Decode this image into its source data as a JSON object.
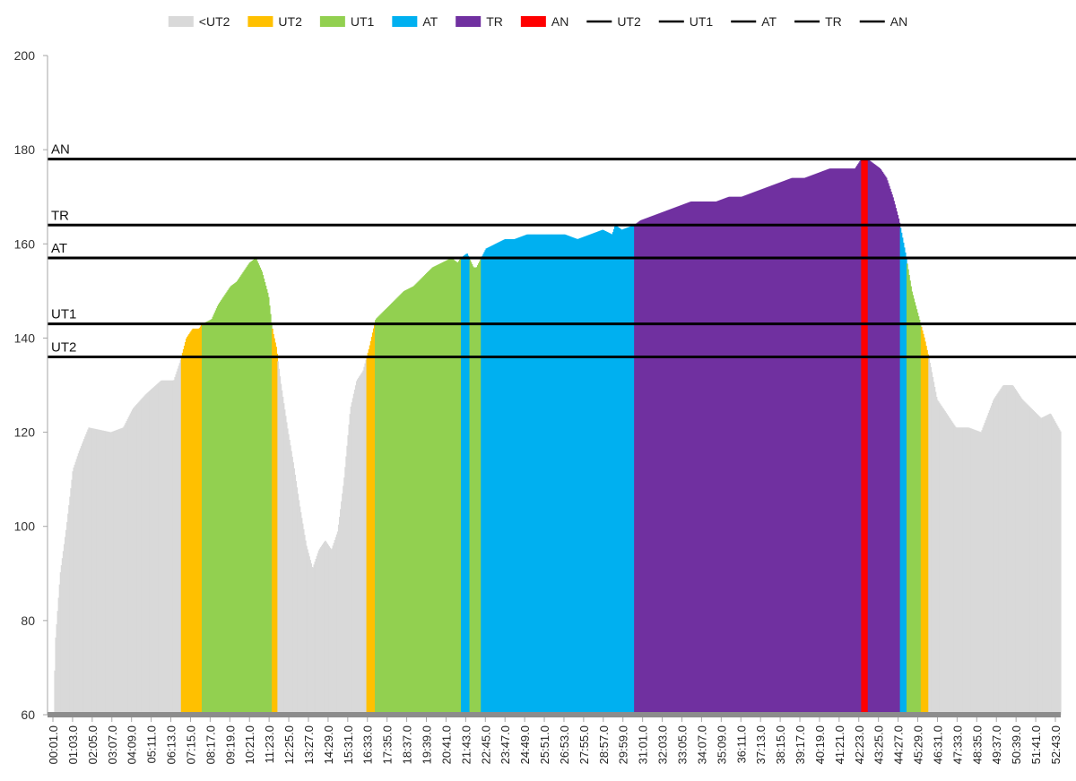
{
  "chart_data": {
    "type": "area",
    "y_axis": {
      "min": 60,
      "max": 200,
      "step": 20,
      "ticks": [
        60,
        80,
        100,
        120,
        140,
        160,
        180,
        200
      ]
    },
    "x_axis": {
      "tick_labels": [
        "00:01.0",
        "01:03.0",
        "02:05.0",
        "03:07.0",
        "04:09.0",
        "05:11.0",
        "06:13.0",
        "07:15.0",
        "08:17.0",
        "09:19.0",
        "10:21.0",
        "11:23.0",
        "12:25.0",
        "13:27.0",
        "14:29.0",
        "15:31.0",
        "16:33.0",
        "17:35.0",
        "18:37.0",
        "19:39.0",
        "20:41.0",
        "21:43.0",
        "22:45.0",
        "23:47.0",
        "24:49.0",
        "25:51.0",
        "26:53.0",
        "27:55.0",
        "28:57.0",
        "29:59.0",
        "31:01.0",
        "32:03.0",
        "33:05.0",
        "34:07.0",
        "35:09.0",
        "36:11.0",
        "37:13.0",
        "38:15.0",
        "39:17.0",
        "40:19.0",
        "41:21.0",
        "42:23.0",
        "43:25.0",
        "44:27.0",
        "45:29.0",
        "46:31.0",
        "47:33.0",
        "48:35.0",
        "49:37.0",
        "50:39.0",
        "51:41.0",
        "52:43.0"
      ],
      "start_seconds": 1,
      "end_seconds": 3213
    },
    "zones": [
      {
        "name": "<UT2",
        "color": "#d9d9d9"
      },
      {
        "name": "UT2",
        "color": "#ffc000"
      },
      {
        "name": "UT1",
        "color": "#92d050"
      },
      {
        "name": "AT",
        "color": "#00b0f0"
      },
      {
        "name": "TR",
        "color": "#7030a0"
      },
      {
        "name": "AN",
        "color": "#ff0000"
      }
    ],
    "reference_lines": [
      {
        "name": "UT2",
        "value": 136
      },
      {
        "name": "UT1",
        "value": 143
      },
      {
        "name": "AT",
        "value": 157
      },
      {
        "name": "TR",
        "value": 164
      },
      {
        "name": "AN",
        "value": 178
      }
    ],
    "series_points": [
      [
        0,
        60
      ],
      [
        20,
        60
      ],
      [
        24,
        75
      ],
      [
        40,
        90
      ],
      [
        60,
        100
      ],
      [
        80,
        112
      ],
      [
        100,
        116
      ],
      [
        130,
        121
      ],
      [
        200,
        120
      ],
      [
        240,
        121
      ],
      [
        270,
        125
      ],
      [
        310,
        128
      ],
      [
        360,
        131
      ],
      [
        400,
        131
      ],
      [
        420,
        135
      ],
      [
        440,
        140
      ],
      [
        460,
        142
      ],
      [
        480,
        142
      ],
      [
        490,
        143
      ],
      [
        520,
        144
      ],
      [
        540,
        147
      ],
      [
        560,
        149
      ],
      [
        580,
        151
      ],
      [
        600,
        152
      ],
      [
        620,
        154
      ],
      [
        640,
        156
      ],
      [
        660,
        157
      ],
      [
        680,
        154
      ],
      [
        700,
        149
      ],
      [
        710,
        143
      ],
      [
        715,
        141
      ],
      [
        725,
        138
      ],
      [
        740,
        130
      ],
      [
        760,
        121
      ],
      [
        780,
        113
      ],
      [
        800,
        104
      ],
      [
        820,
        96
      ],
      [
        840,
        91
      ],
      [
        860,
        95
      ],
      [
        880,
        97
      ],
      [
        900,
        95
      ],
      [
        920,
        99
      ],
      [
        940,
        110
      ],
      [
        960,
        125
      ],
      [
        980,
        131
      ],
      [
        1000,
        133
      ],
      [
        1020,
        138
      ],
      [
        1040,
        144
      ],
      [
        1070,
        146
      ],
      [
        1100,
        148
      ],
      [
        1130,
        150
      ],
      [
        1160,
        151
      ],
      [
        1190,
        153
      ],
      [
        1220,
        155
      ],
      [
        1250,
        156
      ],
      [
        1280,
        157
      ],
      [
        1300,
        156
      ],
      [
        1310,
        157
      ],
      [
        1330,
        158
      ],
      [
        1350,
        155
      ],
      [
        1360,
        155
      ],
      [
        1390,
        159
      ],
      [
        1420,
        160
      ],
      [
        1450,
        161
      ],
      [
        1480,
        161
      ],
      [
        1520,
        162
      ],
      [
        1560,
        162
      ],
      [
        1600,
        162
      ],
      [
        1640,
        162
      ],
      [
        1680,
        161
      ],
      [
        1720,
        162
      ],
      [
        1760,
        163
      ],
      [
        1790,
        162
      ],
      [
        1800,
        164
      ],
      [
        1820,
        163
      ],
      [
        1860,
        164
      ],
      [
        1880,
        165
      ],
      [
        1920,
        166
      ],
      [
        1960,
        167
      ],
      [
        2000,
        168
      ],
      [
        2040,
        169
      ],
      [
        2080,
        169
      ],
      [
        2120,
        169
      ],
      [
        2160,
        170
      ],
      [
        2200,
        170
      ],
      [
        2240,
        171
      ],
      [
        2280,
        172
      ],
      [
        2320,
        173
      ],
      [
        2360,
        174
      ],
      [
        2400,
        174
      ],
      [
        2440,
        175
      ],
      [
        2480,
        176
      ],
      [
        2520,
        176
      ],
      [
        2560,
        176
      ],
      [
        2580,
        178
      ],
      [
        2600,
        178
      ],
      [
        2620,
        177
      ],
      [
        2640,
        176
      ],
      [
        2660,
        174
      ],
      [
        2680,
        170
      ],
      [
        2700,
        165
      ],
      [
        2720,
        158
      ],
      [
        2740,
        150
      ],
      [
        2760,
        145
      ],
      [
        2780,
        140
      ],
      [
        2790,
        137
      ],
      [
        2800,
        134
      ],
      [
        2820,
        127
      ],
      [
        2850,
        124
      ],
      [
        2880,
        121
      ],
      [
        2920,
        121
      ],
      [
        2960,
        120
      ],
      [
        3000,
        127
      ],
      [
        3030,
        130
      ],
      [
        3060,
        130
      ],
      [
        3090,
        127
      ],
      [
        3120,
        125
      ],
      [
        3150,
        123
      ],
      [
        3180,
        124
      ],
      [
        3213,
        120
      ]
    ]
  }
}
